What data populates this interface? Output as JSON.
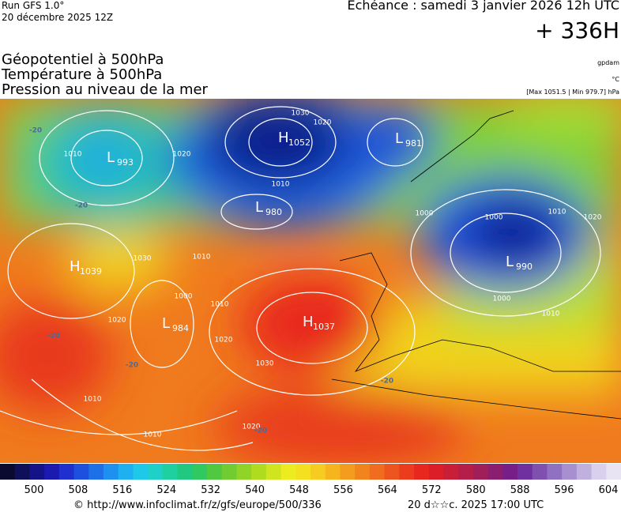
{
  "header": {
    "run": "Run GFS 1.0°",
    "date": "20 décembre 2025 12Z",
    "valid": "Echéance : samedi 3 janvier 2026 12h UTC",
    "lead": "+ 336H",
    "titles": [
      "Géopotentiel à 500hPa",
      "Température à 500hPa",
      "Pression au niveau de la mer"
    ],
    "units": [
      "gpdam",
      "°C",
      "[Max 1051.5 | Min 979.7] hPa"
    ]
  },
  "map": {
    "centers": [
      {
        "type": "L",
        "value": "993"
      },
      {
        "type": "H",
        "value": "1052"
      },
      {
        "type": "L",
        "value": "981"
      },
      {
        "type": "L",
        "value": "980"
      },
      {
        "type": "H",
        "value": "1039"
      },
      {
        "type": "L",
        "value": "990"
      },
      {
        "type": "L",
        "value": "984"
      },
      {
        "type": "H",
        "value": "1037"
      }
    ],
    "isobar_labels": [
      "1030",
      "1020",
      "1020",
      "1010",
      "1000",
      "1000",
      "1010",
      "1020",
      "1030",
      "1010",
      "1000",
      "1010",
      "1020",
      "1020",
      "1030",
      "1000",
      "1010",
      "1010",
      "1010",
      "1020",
      "1010"
    ],
    "temperature_labels": [
      "-20",
      "-20",
      "-20",
      "-20",
      "-20",
      "-20"
    ]
  },
  "colorbar": {
    "ticks": [
      "500",
      "508",
      "516",
      "524",
      "532",
      "540",
      "548",
      "556",
      "564",
      "572",
      "580",
      "588",
      "596",
      "604"
    ]
  },
  "footer": {
    "source": "© http://www.infoclimat.fr/z/gfs/europe/500/336",
    "generated": "20 d☆☆c. 2025 17:00 UTC"
  }
}
